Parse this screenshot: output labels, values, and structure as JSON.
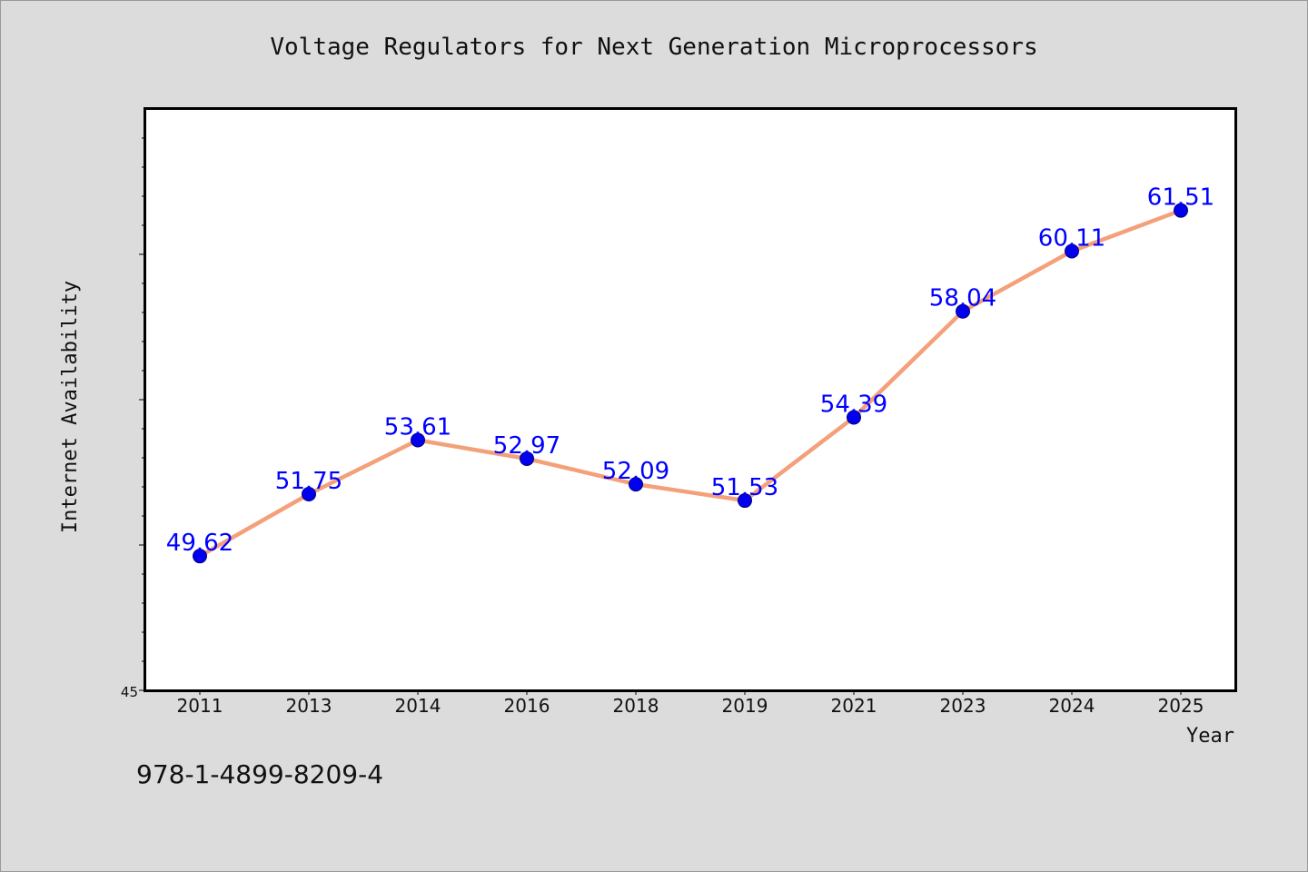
{
  "chart_data": {
    "type": "line",
    "title": "Voltage Regulators for Next Generation Microprocessors",
    "xlabel": "Year",
    "ylabel": "Internet Availability",
    "categories": [
      "2011",
      "2013",
      "2014",
      "2016",
      "2018",
      "2019",
      "2021",
      "2023",
      "2024",
      "2025"
    ],
    "series": [
      {
        "values": [
          49.62,
          51.75,
          53.61,
          52.97,
          52.09,
          51.53,
          54.39,
          58.04,
          60.11,
          61.51
        ],
        "data_labels": [
          "49.62",
          "51.75",
          "53.61",
          "52.97",
          "52.09",
          "51.53",
          "54.39",
          "58.04",
          "60.11",
          "61.51"
        ]
      }
    ],
    "ylim": [
      45,
      65
    ],
    "y_tick_labels": [
      "45"
    ],
    "grid": false,
    "legend": "none",
    "colors": {
      "background": "#dcdcdc",
      "plot_background": "#ffffff",
      "line": "#f4a07a",
      "marker": "#0000ee",
      "data_label": "#0000ff"
    }
  },
  "footer": {
    "isbn": "978-1-4899-8209-4"
  }
}
